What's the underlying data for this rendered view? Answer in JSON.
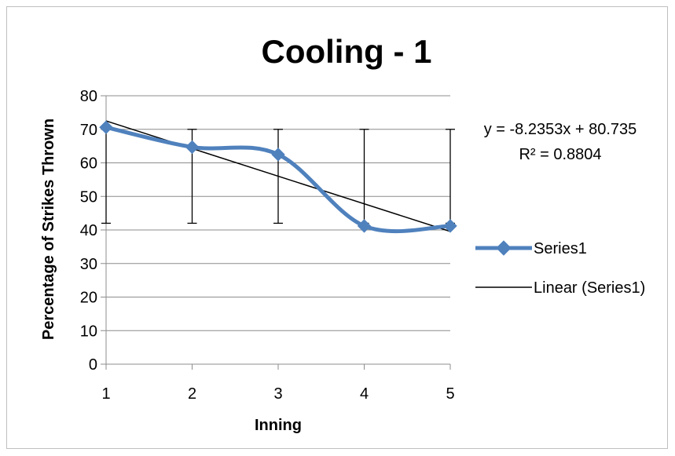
{
  "chart_data": {
    "type": "line",
    "title": "Cooling - 1",
    "xlabel": "Inning",
    "ylabel": "Percentage of Strikes Thrown",
    "categories": [
      "1",
      "2",
      "3",
      "4",
      "5"
    ],
    "x": [
      1,
      2,
      3,
      4,
      5
    ],
    "series": [
      {
        "name": "Series1",
        "values": [
          70.6,
          64.7,
          62.5,
          41.2,
          41.2
        ],
        "error_low": [
          42,
          42,
          42,
          42,
          42
        ],
        "error_high": [
          70,
          70,
          70,
          70,
          70
        ],
        "color": "#4F81BD",
        "marker": "diamond",
        "smoothed": true
      }
    ],
    "trendline": {
      "name": "Linear (Series1)",
      "slope": -8.2353,
      "intercept": 80.735,
      "equation": "y = -8.2353x + 80.735",
      "r_squared": "R² = 0.8804",
      "color": "#000000"
    },
    "ylim": [
      0,
      80
    ],
    "yticks": [
      "0",
      "10",
      "20",
      "30",
      "40",
      "50",
      "60",
      "70",
      "80"
    ],
    "grid": "horizontal",
    "legend_position": "right"
  }
}
